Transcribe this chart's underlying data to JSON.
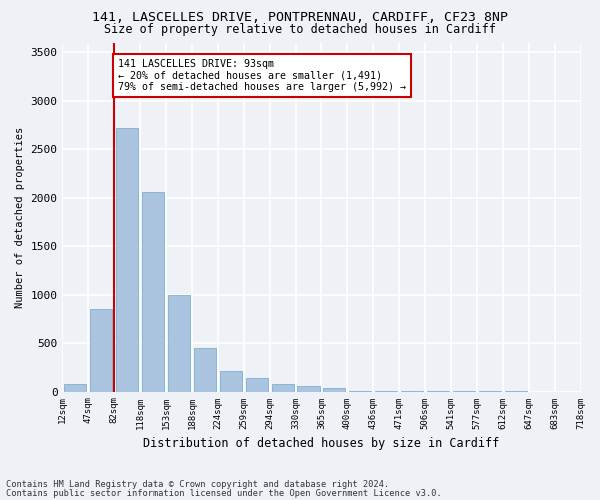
{
  "title_line1": "141, LASCELLES DRIVE, PONTPRENNAU, CARDIFF, CF23 8NP",
  "title_line2": "Size of property relative to detached houses in Cardiff",
  "xlabel": "Distribution of detached houses by size in Cardiff",
  "ylabel": "Number of detached properties",
  "bins": [
    "12sqm",
    "47sqm",
    "82sqm",
    "118sqm",
    "153sqm",
    "188sqm",
    "224sqm",
    "259sqm",
    "294sqm",
    "330sqm",
    "365sqm",
    "400sqm",
    "436sqm",
    "471sqm",
    "506sqm",
    "541sqm",
    "577sqm",
    "612sqm",
    "647sqm",
    "683sqm",
    "718sqm"
  ],
  "bar_values": [
    75,
    850,
    2720,
    2060,
    1000,
    450,
    210,
    140,
    80,
    60,
    40,
    10,
    5,
    5,
    3,
    2,
    1,
    1,
    0,
    0
  ],
  "bar_color": "#aac4e0",
  "bar_edgecolor": "#6fa8d0",
  "property_bin_index": 2,
  "annotation_text": "141 LASCELLES DRIVE: 93sqm\n← 20% of detached houses are smaller (1,491)\n79% of semi-detached houses are larger (5,992) →",
  "annotation_box_color": "#ffffff",
  "annotation_box_edgecolor": "#cc0000",
  "vline_color": "#cc0000",
  "ylim": [
    0,
    3600
  ],
  "yticks": [
    0,
    500,
    1000,
    1500,
    2000,
    2500,
    3000,
    3500
  ],
  "background_color": "#eef2f7",
  "grid_color": "#ffffff",
  "footer_line1": "Contains HM Land Registry data © Crown copyright and database right 2024.",
  "footer_line2": "Contains public sector information licensed under the Open Government Licence v3.0."
}
